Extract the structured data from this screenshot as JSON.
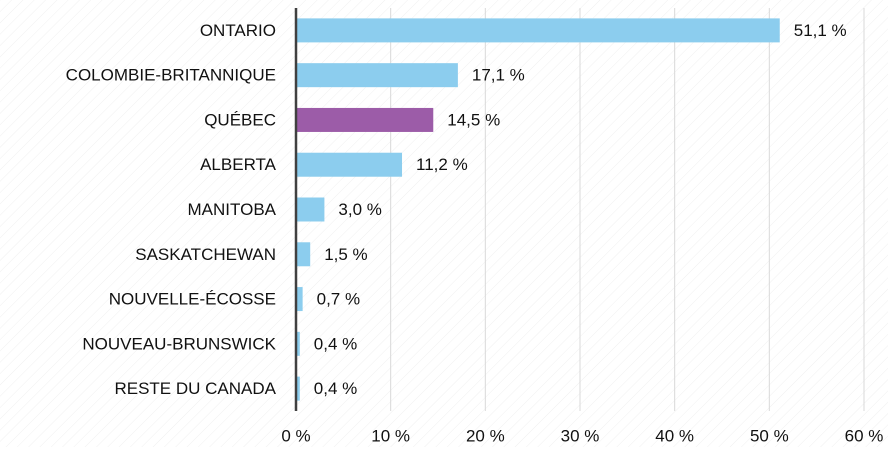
{
  "chart_data": {
    "type": "bar",
    "categories": [
      "ONTARIO",
      "COLOMBIE-BRITANNIQUE",
      "QUÉBEC",
      "ALBERTA",
      "MANITOBA",
      "SASKATCHEWAN",
      "NOUVELLE-ÉCOSSE",
      "NOUVEAU-BRUNSWICK",
      "RESTE DU CANADA"
    ],
    "values": [
      51.1,
      17.1,
      14.5,
      11.2,
      3.0,
      1.5,
      0.7,
      0.4,
      0.4
    ],
    "value_labels": [
      "51,1 %",
      "17,1 %",
      "14,5 %",
      "11,2 %",
      "3,0 %",
      "1,5 %",
      "0,7 %",
      "0,4 %",
      "0,4 %"
    ],
    "colors": [
      "#8ccdee",
      "#8ccdee",
      "#9c5ca8",
      "#8ccdee",
      "#8ccdee",
      "#8ccdee",
      "#8ccdee",
      "#8ccdee",
      "#8ccdee"
    ],
    "xlim": [
      0,
      60
    ],
    "xticks": [
      {
        "value": 0,
        "label": "0 %"
      },
      {
        "value": 10,
        "label": "10 %"
      },
      {
        "value": 20,
        "label": "20 %"
      },
      {
        "value": 30,
        "label": "30 %"
      },
      {
        "value": 40,
        "label": "40 %"
      },
      {
        "value": 50,
        "label": "50 %"
      },
      {
        "value": 60,
        "label": "60 %"
      }
    ],
    "grid": true
  }
}
